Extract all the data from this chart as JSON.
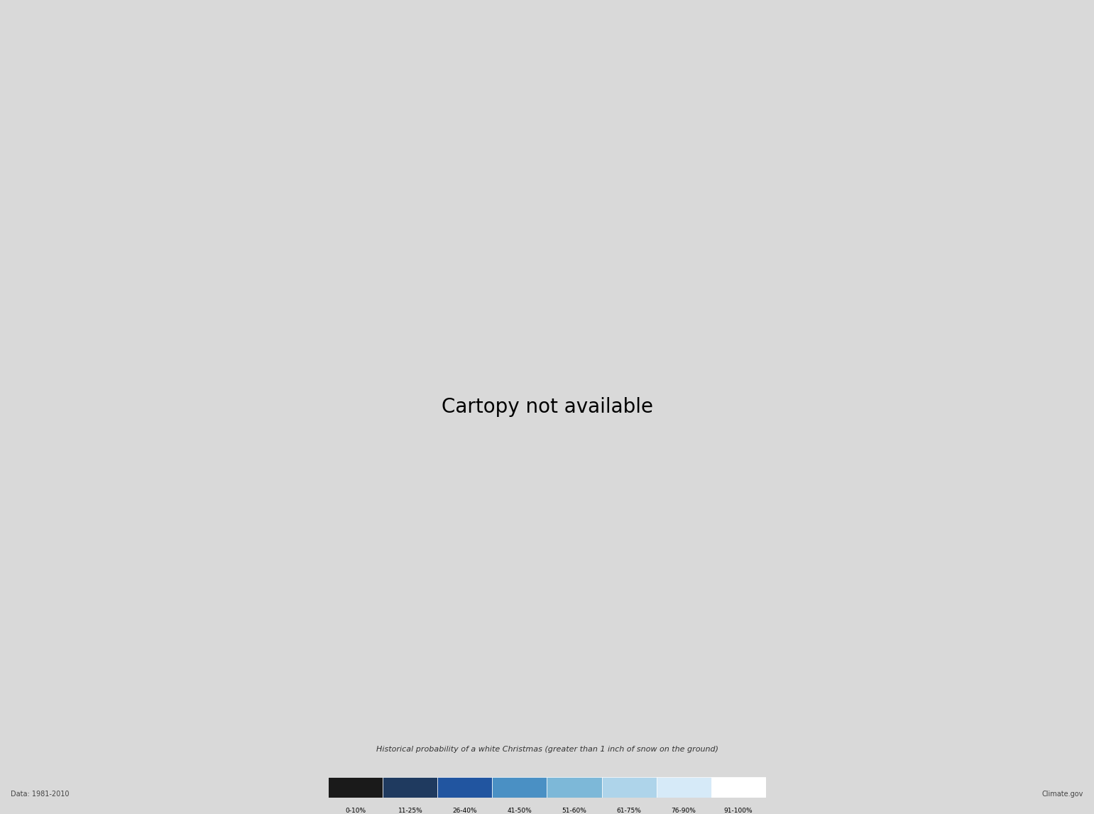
{
  "title": "Historical probability of a white Christmas (greater than 1 inch of snow on the ground)",
  "data_source_label": "Data: 1981-2010",
  "website_label": "Climate.gov",
  "background_color": "#d9d9d9",
  "legend_colors": [
    "#1a1a1a",
    "#1f3a5f",
    "#2155a0",
    "#4a90c4",
    "#7db8d8",
    "#aed4ea",
    "#d6eaf8",
    "#ffffff"
  ],
  "legend_labels": [
    "0-10%",
    "11-25%",
    "26-40%",
    "41-50%",
    "51-60%",
    "61-75%",
    "76-90%",
    "91-100%"
  ],
  "colormap_colors": [
    [
      0.0,
      "#111111"
    ],
    [
      0.1,
      "#1a2a4a"
    ],
    [
      0.25,
      "#1f4a8f"
    ],
    [
      0.4,
      "#2878c0"
    ],
    [
      0.5,
      "#4a9fd4"
    ],
    [
      0.6,
      "#72b8e0"
    ],
    [
      0.75,
      "#a0cce8"
    ],
    [
      0.9,
      "#c8e0f0"
    ],
    [
      1.0,
      "#ffffff"
    ]
  ],
  "figsize": [
    15.41,
    11.46
  ],
  "dpi": 100
}
